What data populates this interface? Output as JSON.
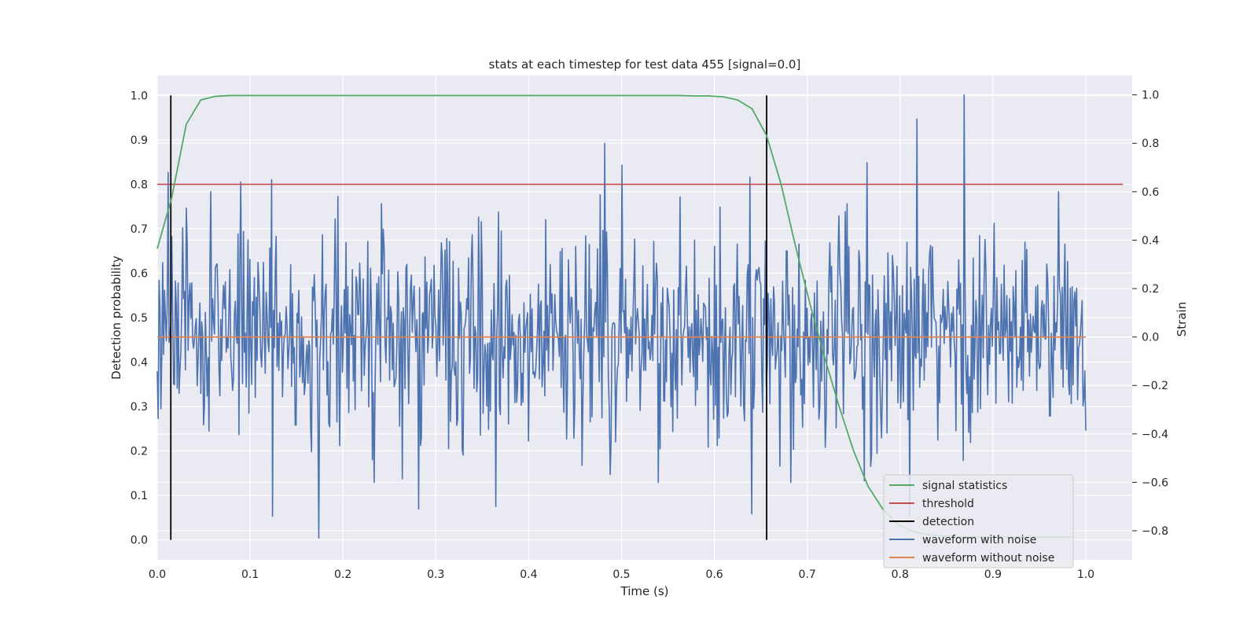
{
  "chart_data": {
    "type": "line",
    "title": "stats at each timestep for test data 455 [signal=0.0]",
    "xlabel": "Time (s)",
    "ylabel_left": "Detection probability",
    "ylabel_right": "Strain",
    "xlim": [
      0.0,
      1.05
    ],
    "ylim_left": [
      -0.045,
      1.045
    ],
    "ylim_right": [
      -0.92,
      1.08
    ],
    "x_ticks": [
      "0.0",
      "0.1",
      "0.2",
      "0.3",
      "0.4",
      "0.5",
      "0.6",
      "0.7",
      "0.8",
      "0.9",
      "1.0"
    ],
    "y_left_ticks": [
      "0.0",
      "0.1",
      "0.2",
      "0.3",
      "0.4",
      "0.5",
      "0.6",
      "0.7",
      "0.8",
      "0.9",
      "1.0"
    ],
    "y_right_ticks": [
      "−0.8",
      "−0.6",
      "−0.4",
      "−0.2",
      "0.0",
      "0.2",
      "0.4",
      "0.6",
      "0.8",
      "1.0"
    ],
    "grid": true,
    "legend_position": "lower-right",
    "series": [
      {
        "name": "signal statistics",
        "axis": "left",
        "color": "#55a868",
        "x": [
          0.0,
          0.0156,
          0.0312,
          0.0469,
          0.0625,
          0.0781,
          0.0938,
          0.1094,
          0.125,
          0.5625,
          0.5781,
          0.5938,
          0.6094,
          0.625,
          0.6406,
          0.6562,
          0.6719,
          0.6875,
          0.7031,
          0.7188,
          0.7344,
          0.75,
          0.7656,
          0.7812,
          0.7969,
          0.8125,
          0.8281,
          0.8438,
          0.8594,
          0.875,
          0.8906,
          0.9062,
          0.9219,
          0.9375,
          0.9531,
          0.9688,
          0.9844
        ],
        "y": [
          0.655,
          0.77,
          0.935,
          0.99,
          0.998,
          1.0,
          1.0,
          1.0,
          1.0,
          1.0,
          0.999,
          0.999,
          0.997,
          0.99,
          0.97,
          0.91,
          0.8,
          0.66,
          0.53,
          0.41,
          0.3,
          0.2,
          0.12,
          0.07,
          0.035,
          0.02,
          0.012,
          0.009,
          0.007,
          0.006,
          0.006,
          0.006,
          0.006,
          0.006,
          0.006,
          0.006,
          0.006
        ]
      },
      {
        "name": "threshold",
        "axis": "left",
        "color": "#c44e52",
        "x": [
          0.0,
          1.04
        ],
        "y": [
          0.8,
          0.8
        ]
      },
      {
        "name": "detection",
        "axis": "left",
        "color": "#000000",
        "x": [
          0.0146,
          0.6563
        ],
        "y_range": [
          0.0,
          1.0
        ]
      },
      {
        "name": "waveform with noise",
        "axis": "right",
        "color": "#4c72b0",
        "x_range": [
          0.0,
          1.0
        ],
        "num_points": 1024,
        "amplitude_rms": 0.22,
        "annotated_peaks": [
          {
            "x": 0.012,
            "y": 0.68
          },
          {
            "x": 0.09,
            "y": 0.64
          },
          {
            "x": 0.123,
            "y": 0.65
          },
          {
            "x": 0.124,
            "y": -0.74
          },
          {
            "x": 0.174,
            "y": -0.83
          },
          {
            "x": 0.282,
            "y": -0.71
          },
          {
            "x": 0.365,
            "y": -0.7
          },
          {
            "x": 0.482,
            "y": 0.8
          },
          {
            "x": 0.5,
            "y": 0.71
          },
          {
            "x": 0.638,
            "y": 0.66
          },
          {
            "x": 0.64,
            "y": -0.73
          },
          {
            "x": 0.764,
            "y": 0.72
          },
          {
            "x": 0.81,
            "y": -0.74
          },
          {
            "x": 0.818,
            "y": 0.9
          },
          {
            "x": 0.869,
            "y": 1.0
          }
        ]
      },
      {
        "name": "waveform without noise",
        "axis": "right",
        "color": "#dd8452",
        "x": [
          0.0,
          1.0
        ],
        "y": [
          0.0,
          0.0
        ]
      }
    ]
  }
}
